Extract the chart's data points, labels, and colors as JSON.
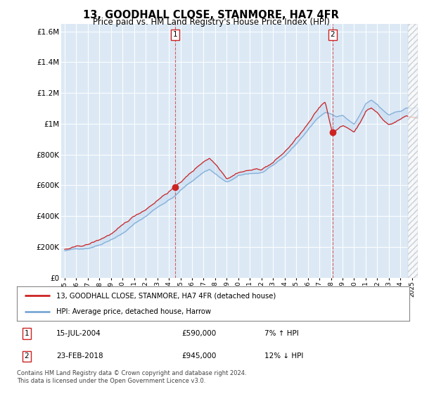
{
  "title": "13, GOODHALL CLOSE, STANMORE, HA7 4FR",
  "subtitle": "Price paid vs. HM Land Registry's House Price Index (HPI)",
  "legend_line1": "13, GOODHALL CLOSE, STANMORE, HA7 4FR (detached house)",
  "legend_line2": "HPI: Average price, detached house, Harrow",
  "sale1_label": "1",
  "sale1_date": "15-JUL-2004",
  "sale1_price": "£590,000",
  "sale1_hpi": "7% ↑ HPI",
  "sale2_label": "2",
  "sale2_date": "23-FEB-2018",
  "sale2_price": "£945,000",
  "sale2_hpi": "12% ↓ HPI",
  "footer": "Contains HM Land Registry data © Crown copyright and database right 2024.\nThis data is licensed under the Open Government Licence v3.0.",
  "hpi_color": "#7aa8d4",
  "price_color": "#cc2222",
  "sale1_x": 2004.54,
  "sale1_y": 590000,
  "sale2_x": 2018.14,
  "sale2_y": 945000,
  "ylim": [
    0,
    1650000
  ],
  "xlim_start": 1995,
  "xlim_end": 2025.5,
  "plot_bg": "#dce9f5",
  "fill_alpha": 0.4
}
